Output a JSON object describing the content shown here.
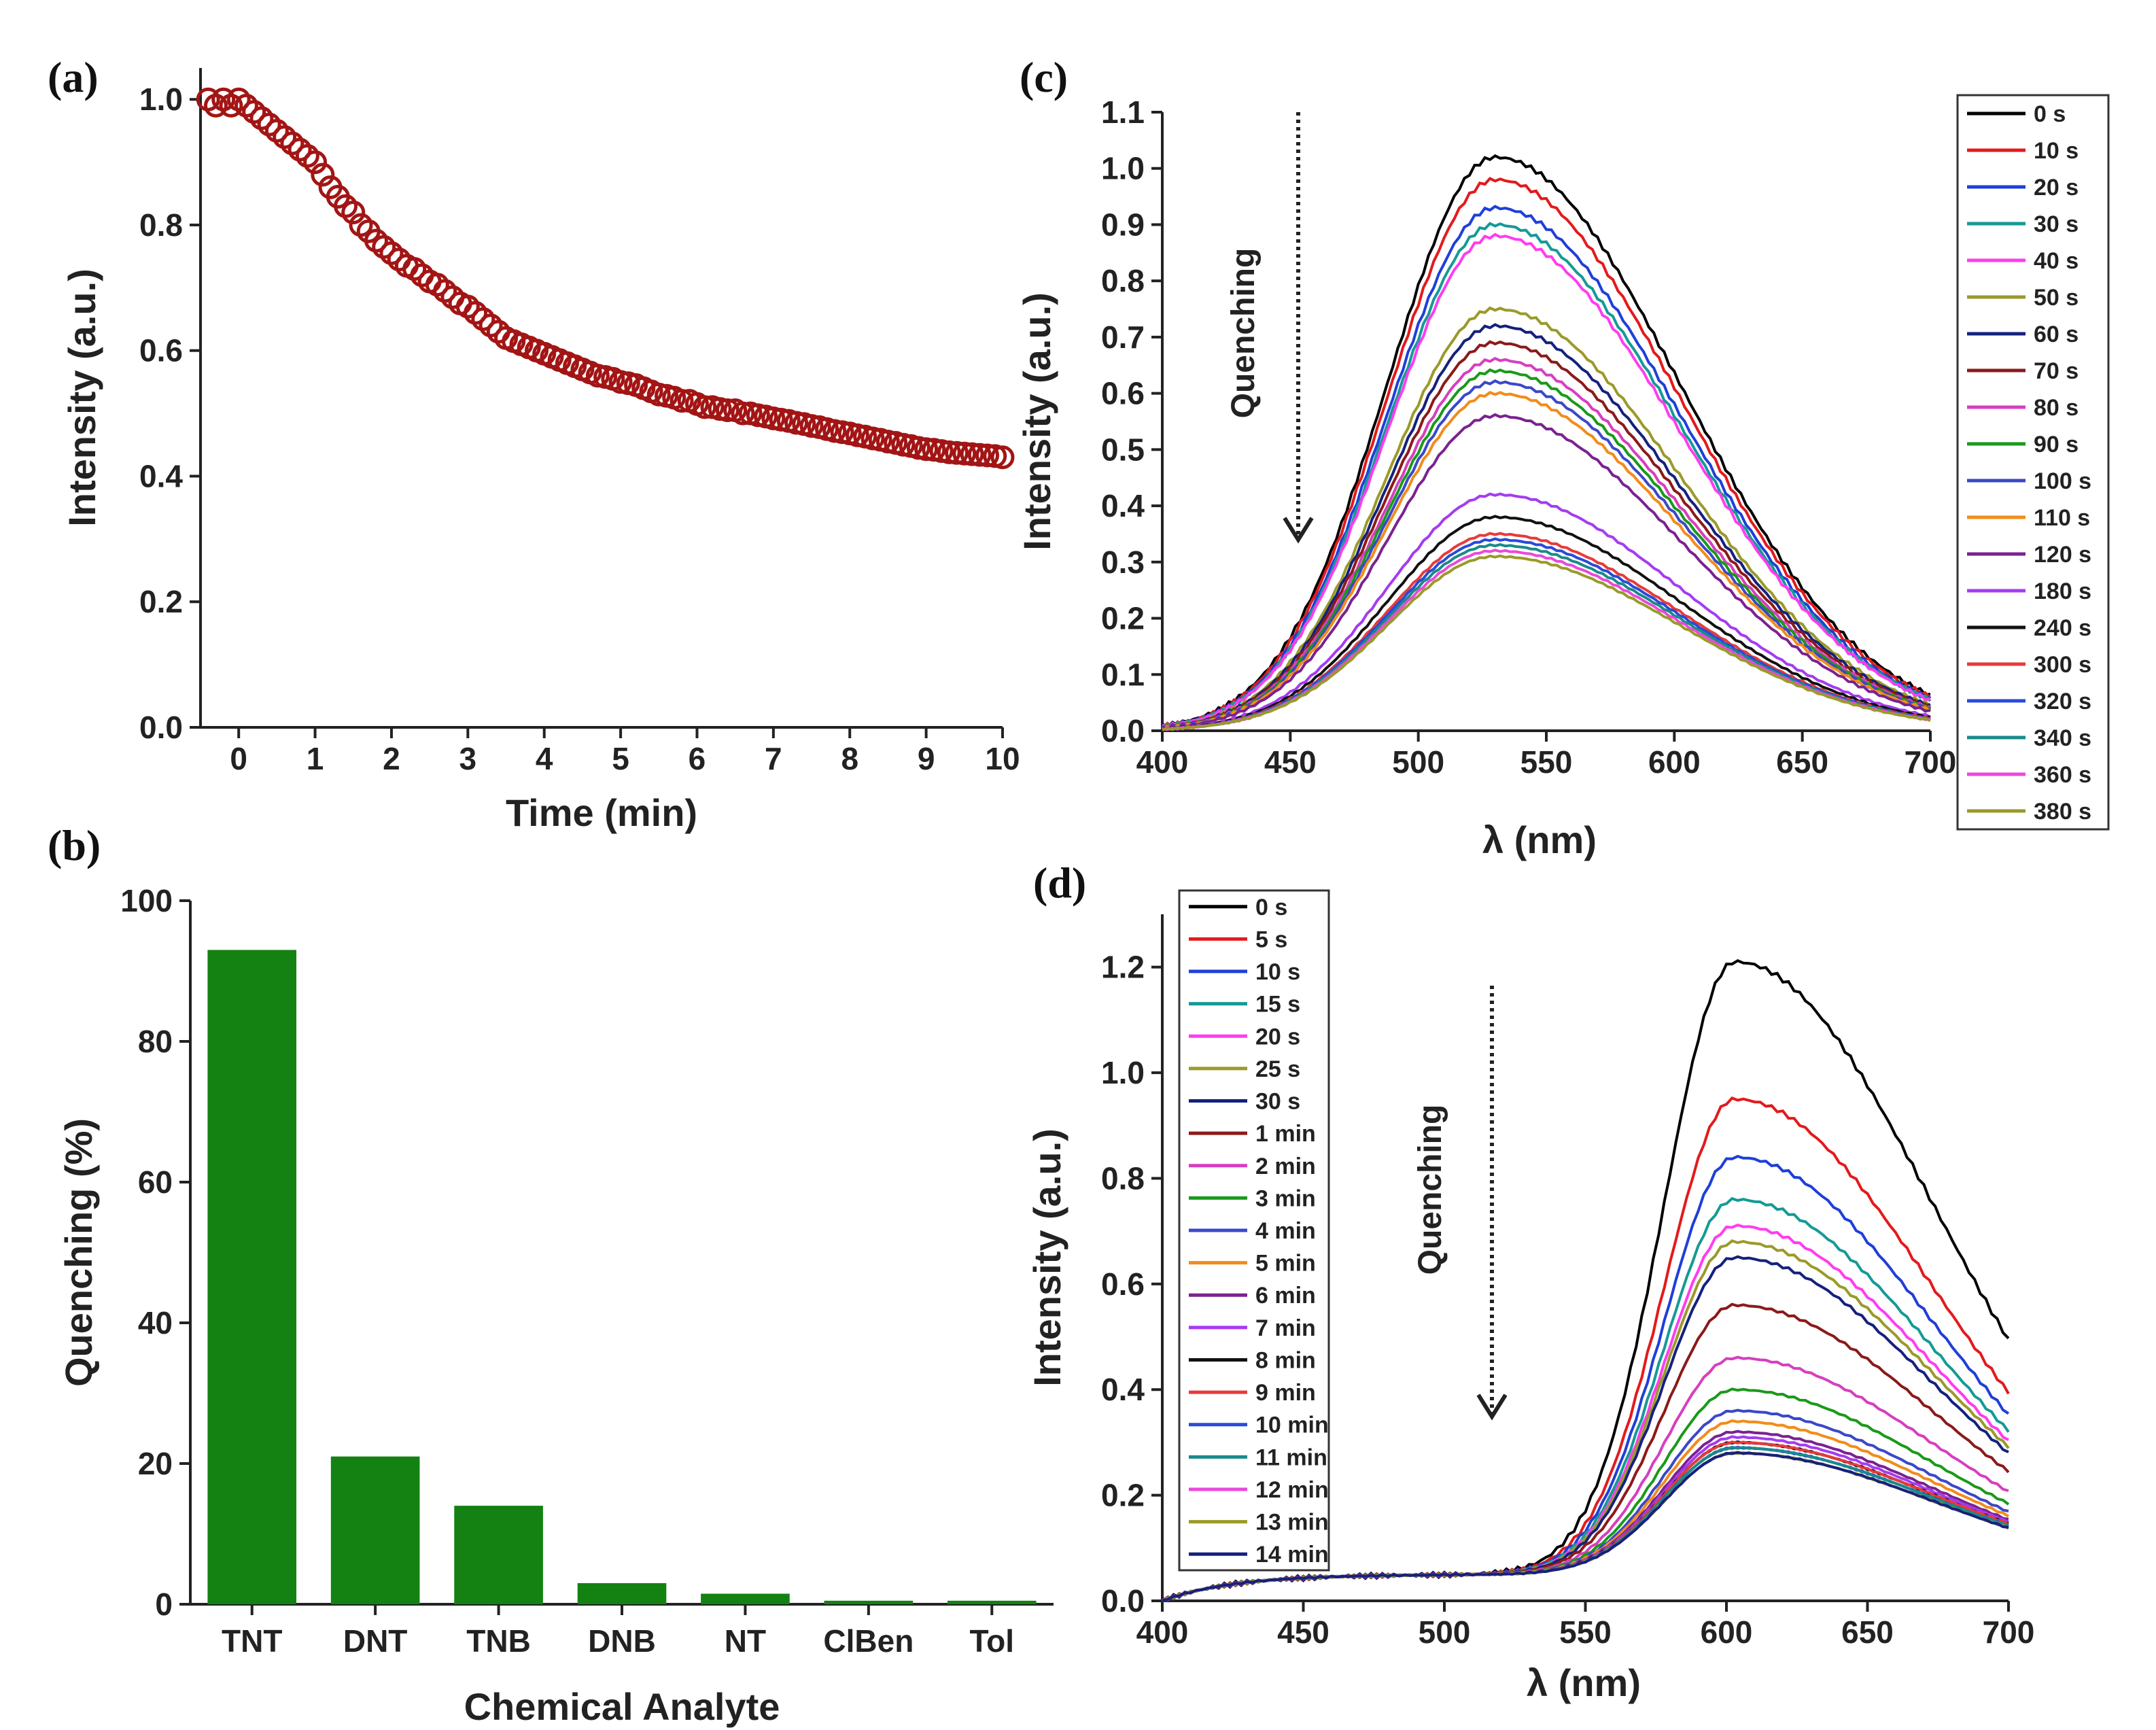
{
  "chart_data": [
    {
      "panel": "(a)",
      "type": "scatter",
      "xlabel": "Time (min)",
      "ylabel": "Intensity (a.u.)",
      "xlim": [
        -0.5,
        10
      ],
      "ylim": [
        0,
        1.05
      ],
      "xticks": [
        0,
        1,
        2,
        3,
        4,
        5,
        6,
        7,
        8,
        9,
        10
      ],
      "yticks": [
        0.0,
        0.2,
        0.4,
        0.6,
        0.8,
        1.0
      ],
      "marker_color": "#a31515",
      "series": [
        {
          "x": [
            -0.4,
            -0.3,
            -0.2,
            -0.1,
            0,
            0.1,
            0.2,
            0.3,
            0.4,
            0.5,
            0.6,
            0.7,
            0.8,
            0.9,
            1.0,
            1.1,
            1.2,
            1.3,
            1.4,
            1.5,
            1.6,
            1.7,
            1.8,
            1.9,
            2.0,
            2.1,
            2.2,
            2.3,
            2.4,
            2.5,
            2.6,
            2.7,
            2.8,
            2.9,
            3.0,
            3.1,
            3.2,
            3.3,
            3.4,
            3.5,
            3.6,
            3.7,
            3.8,
            3.9,
            4.0,
            4.1,
            4.2,
            4.3,
            4.4,
            4.5,
            4.6,
            4.7,
            4.8,
            4.9,
            5.0,
            5.1,
            5.2,
            5.3,
            5.4,
            5.5,
            5.6,
            5.7,
            5.8,
            5.9,
            6.0,
            6.1,
            6.2,
            6.3,
            6.4,
            6.5,
            6.6,
            6.7,
            6.8,
            6.9,
            7.0,
            7.1,
            7.2,
            7.3,
            7.4,
            7.5,
            7.6,
            7.7,
            7.8,
            7.9,
            8.0,
            8.1,
            8.2,
            8.3,
            8.4,
            8.5,
            8.6,
            8.7,
            8.8,
            8.9,
            9.0,
            9.1,
            9.2,
            9.3,
            9.4,
            9.5,
            9.6,
            9.7,
            9.8,
            9.9,
            10.0
          ],
          "y": [
            1.0,
            0.99,
            1.0,
            0.99,
            1.0,
            0.99,
            0.98,
            0.97,
            0.96,
            0.95,
            0.94,
            0.93,
            0.92,
            0.91,
            0.9,
            0.88,
            0.86,
            0.845,
            0.83,
            0.82,
            0.8,
            0.79,
            0.775,
            0.765,
            0.755,
            0.745,
            0.735,
            0.73,
            0.72,
            0.71,
            0.705,
            0.695,
            0.685,
            0.675,
            0.67,
            0.66,
            0.65,
            0.64,
            0.63,
            0.62,
            0.615,
            0.61,
            0.605,
            0.6,
            0.595,
            0.59,
            0.585,
            0.58,
            0.575,
            0.57,
            0.565,
            0.56,
            0.558,
            0.555,
            0.55,
            0.548,
            0.545,
            0.54,
            0.535,
            0.53,
            0.528,
            0.525,
            0.52,
            0.52,
            0.515,
            0.51,
            0.51,
            0.507,
            0.505,
            0.505,
            0.5,
            0.5,
            0.497,
            0.495,
            0.492,
            0.49,
            0.488,
            0.485,
            0.483,
            0.48,
            0.478,
            0.475,
            0.472,
            0.47,
            0.468,
            0.465,
            0.463,
            0.46,
            0.458,
            0.455,
            0.453,
            0.45,
            0.448,
            0.445,
            0.443,
            0.442,
            0.44,
            0.438,
            0.437,
            0.436,
            0.435,
            0.434,
            0.433,
            0.432,
            0.43
          ]
        }
      ]
    },
    {
      "panel": "(b)",
      "type": "bar",
      "xlabel": "Chemical Analyte",
      "ylabel": "Quenching (%)",
      "ylim": [
        0,
        100
      ],
      "yticks": [
        0,
        20,
        40,
        60,
        80,
        100
      ],
      "bar_color": "#138213",
      "categories": [
        "TNT",
        "DNT",
        "TNB",
        "DNB",
        "NT",
        "ClBen",
        "Tol"
      ],
      "values": [
        93,
        21,
        14,
        3,
        1.5,
        0.5,
        0.5
      ]
    },
    {
      "panel": "(c)",
      "type": "line",
      "xlabel": "λ (nm)",
      "ylabel": "Intensity (a.u.)",
      "xlim": [
        400,
        700
      ],
      "ylim": [
        0,
        1.1
      ],
      "xticks": [
        400,
        450,
        500,
        550,
        600,
        650,
        700
      ],
      "yticks": [
        0.0,
        0.1,
        0.2,
        0.3,
        0.4,
        0.5,
        0.6,
        0.7,
        0.8,
        0.9,
        1.0,
        1.1
      ],
      "annotation": "Quenching",
      "peak_nm": 530,
      "sigma_left": 42,
      "sigma_right": 72,
      "series": [
        {
          "name": "0 s",
          "color": "#000000",
          "peak": 1.02
        },
        {
          "name": "10 s",
          "color": "#e31a1c",
          "peak": 0.98
        },
        {
          "name": "20 s",
          "color": "#1f3fd8",
          "peak": 0.93
        },
        {
          "name": "30 s",
          "color": "#159a96",
          "peak": 0.9
        },
        {
          "name": "40 s",
          "color": "#ff3cf0",
          "peak": 0.88
        },
        {
          "name": "50 s",
          "color": "#9a9a2a",
          "peak": 0.75
        },
        {
          "name": "60 s",
          "color": "#15217d",
          "peak": 0.72
        },
        {
          "name": "70 s",
          "color": "#8b1a1a",
          "peak": 0.69
        },
        {
          "name": "80 s",
          "color": "#d63fbf",
          "peak": 0.66
        },
        {
          "name": "90 s",
          "color": "#1a9a1a",
          "peak": 0.64
        },
        {
          "name": "100 s",
          "color": "#3a48c8",
          "peak": 0.62
        },
        {
          "name": "110 s",
          "color": "#f28c1a",
          "peak": 0.6
        },
        {
          "name": "120 s",
          "color": "#7a2290",
          "peak": 0.56
        },
        {
          "name": "180 s",
          "color": "#a43cf0",
          "peak": 0.42
        },
        {
          "name": "240 s",
          "color": "#111111",
          "peak": 0.38
        },
        {
          "name": "300 s",
          "color": "#e83a3a",
          "peak": 0.35
        },
        {
          "name": "320 s",
          "color": "#2a4ad8",
          "peak": 0.34
        },
        {
          "name": "340 s",
          "color": "#1a8a8a",
          "peak": 0.33
        },
        {
          "name": "360 s",
          "color": "#e84ad8",
          "peak": 0.32
        },
        {
          "name": "380 s",
          "color": "#9a9a2a",
          "peak": 0.31
        }
      ]
    },
    {
      "panel": "(d)",
      "type": "line",
      "xlabel": "λ (nm)",
      "ylabel": "Intensity (a.u.)",
      "xlim": [
        400,
        700
      ],
      "ylim": [
        0,
        1.3
      ],
      "xticks": [
        400,
        450,
        500,
        550,
        600,
        650,
        700
      ],
      "yticks": [
        0.0,
        0.2,
        0.4,
        0.6,
        0.8,
        1.0,
        1.2
      ],
      "annotation": "Quenching",
      "peak_nm": 603,
      "sigma_left": 25,
      "sigma_right": 70,
      "baseline_plateau": 0.05,
      "series": [
        {
          "name": "0 s",
          "color": "#000000",
          "peak": 1.21
        },
        {
          "name": "5 s",
          "color": "#e31a1c",
          "peak": 0.95
        },
        {
          "name": "10 s",
          "color": "#1f3fd8",
          "peak": 0.84
        },
        {
          "name": "15 s",
          "color": "#159a96",
          "peak": 0.76
        },
        {
          "name": "20 s",
          "color": "#ff3cf0",
          "peak": 0.71
        },
        {
          "name": "25 s",
          "color": "#9a9a2a",
          "peak": 0.68
        },
        {
          "name": "30 s",
          "color": "#15217d",
          "peak": 0.65
        },
        {
          "name": "1 min",
          "color": "#8b1a1a",
          "peak": 0.56
        },
        {
          "name": "2 min",
          "color": "#d63fbf",
          "peak": 0.46
        },
        {
          "name": "3 min",
          "color": "#1a9a1a",
          "peak": 0.4
        },
        {
          "name": "4 min",
          "color": "#3a48c8",
          "peak": 0.36
        },
        {
          "name": "5 min",
          "color": "#f28c1a",
          "peak": 0.34
        },
        {
          "name": "6 min",
          "color": "#7a2290",
          "peak": 0.32
        },
        {
          "name": "7 min",
          "color": "#a43cf0",
          "peak": 0.31
        },
        {
          "name": "8 min",
          "color": "#111111",
          "peak": 0.3
        },
        {
          "name": "9 min",
          "color": "#e83a3a",
          "peak": 0.3
        },
        {
          "name": "10 min",
          "color": "#2a4ad8",
          "peak": 0.29
        },
        {
          "name": "11 min",
          "color": "#1a8a8a",
          "peak": 0.29
        },
        {
          "name": "12 min",
          "color": "#e84ad8",
          "peak": 0.28
        },
        {
          "name": "13 min",
          "color": "#9a9a2a",
          "peak": 0.28
        },
        {
          "name": "14 min",
          "color": "#15217d",
          "peak": 0.28
        }
      ]
    }
  ]
}
